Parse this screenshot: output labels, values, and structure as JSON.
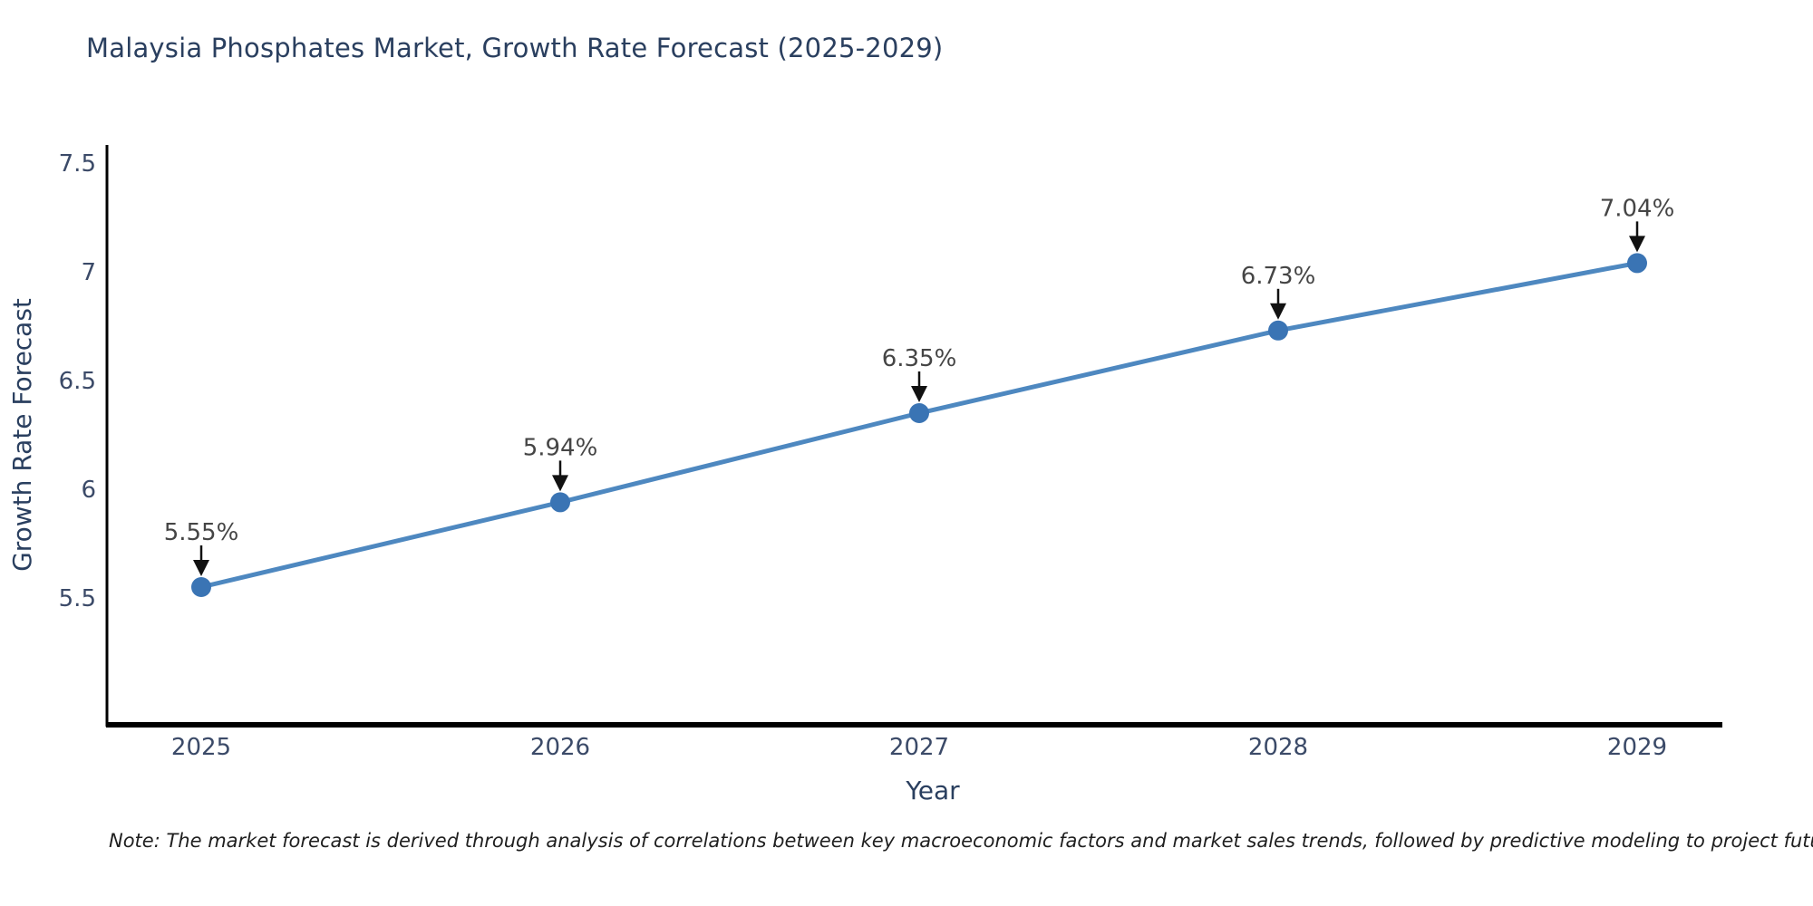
{
  "header": {
    "title": "Malaysia Phosphates Market, Growth Rate Forecast (2025-2029)"
  },
  "footnote": {
    "text": "Note: The market forecast is derived through analysis of correlations between key macroeconomic factors and market sales trends, followed by predictive modeling to project future sales"
  },
  "chart_data": {
    "type": "line",
    "title": "Malaysia Phosphates Market, Growth Rate Forecast (2025-2029)",
    "xlabel": "Year",
    "ylabel": "Growth Rate Forecast",
    "x": [
      2025,
      2026,
      2027,
      2028,
      2029
    ],
    "values": [
      5.55,
      5.94,
      6.35,
      6.73,
      7.04
    ],
    "point_labels": [
      "5.55%",
      "5.94%",
      "6.35%",
      "6.73%",
      "7.04%"
    ],
    "x_tick_labels": [
      "2025",
      "2026",
      "2027",
      "2028",
      "2029"
    ],
    "y_tick_values": [
      5.5,
      6,
      6.5,
      7,
      7.5
    ],
    "y_tick_labels": [
      "5.5",
      "6",
      "6.5",
      "7",
      "7.5"
    ],
    "ylim": [
      4.9,
      7.6
    ],
    "grid": false,
    "legend": "none",
    "annotations": "value labels with downward arrows above each point",
    "colors": {
      "line": "#4e88c0",
      "marker": "#3a74b4",
      "axis": "#000000",
      "title_text": "#2a3f5f",
      "tick_text": "#3b4a68",
      "axis_label_text": "#2a3f5f",
      "annotation_text": "#454545",
      "arrow": "#111111",
      "note_text": "#1f1f1f",
      "background": "#ffffff"
    }
  }
}
